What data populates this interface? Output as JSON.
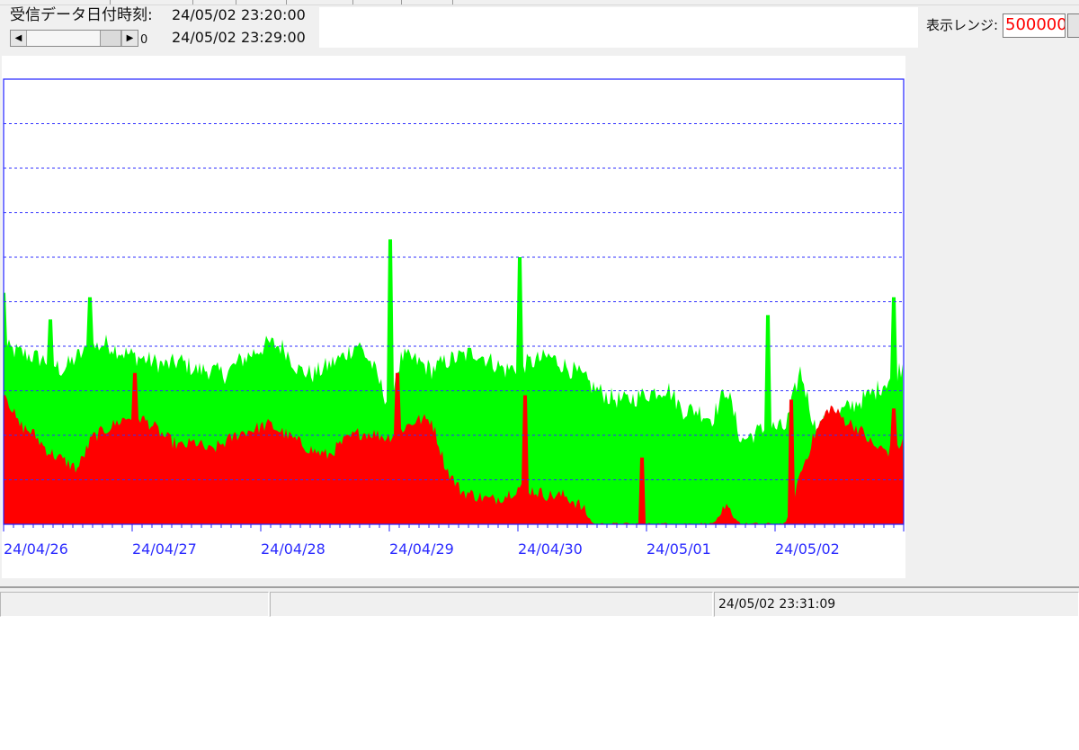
{
  "header": {
    "received_label": "受信データ日付時刻:",
    "received_start": "24/05/02 23:20:00",
    "received_end": "24/05/02 23:29:00",
    "scroll_value": "0"
  },
  "range": {
    "label": "表示レンジ:",
    "value": "500000"
  },
  "status": {
    "time": "24/05/02 23:31:09"
  },
  "chart_data": {
    "type": "area",
    "x_tick_labels": [
      "24/04/26",
      "24/04/27",
      "24/04/28",
      "24/04/29",
      "24/04/30",
      "24/05/01",
      "24/05/02"
    ],
    "ylim": [
      0,
      1
    ],
    "y_gridlines": 10,
    "grid": true,
    "series": [
      {
        "color": "#00ff00",
        "values": [
          0.39,
          0.38,
          0.37,
          0.36,
          0.34,
          0.37,
          0.39,
          0.4,
          0.38,
          0.37,
          0.36,
          0.35,
          0.36,
          0.34,
          0.34,
          0.33,
          0.36,
          0.38,
          0.4,
          0.39,
          0.34,
          0.33,
          0.35,
          0.37,
          0.4,
          0.35,
          0.27,
          0.37,
          0.36,
          0.34,
          0.36,
          0.37,
          0.38,
          0.36,
          0.34,
          0.35,
          0.36,
          0.37,
          0.35,
          0.33,
          0.3,
          0.28,
          0.27,
          0.28,
          0.29,
          0.3,
          0.25,
          0.25,
          0.23,
          0.3,
          0.18,
          0.2,
          0.21,
          0.21,
          0.34,
          0.21,
          0.23,
          0.25,
          0.27,
          0.29,
          0.32,
          0.35
        ],
        "peaks": [
          [
            0.0,
            0.52
          ],
          [
            0.052,
            0.46
          ],
          [
            0.096,
            0.51
          ],
          [
            0.43,
            0.64
          ],
          [
            0.573,
            0.6
          ],
          [
            0.85,
            0.47
          ],
          [
            0.99,
            0.51
          ]
        ]
      },
      {
        "color": "#ff0000",
        "values": [
          0.3,
          0.22,
          0.2,
          0.16,
          0.14,
          0.12,
          0.19,
          0.21,
          0.23,
          0.24,
          0.22,
          0.19,
          0.17,
          0.18,
          0.16,
          0.18,
          0.2,
          0.21,
          0.22,
          0.2,
          0.18,
          0.16,
          0.15,
          0.18,
          0.2,
          0.2,
          0.19,
          0.21,
          0.23,
          0.23,
          0.12,
          0.07,
          0.06,
          0.05,
          0.06,
          0.08,
          0.07,
          0.06,
          0.06,
          0.04,
          0.0,
          0.0,
          0.0,
          0.0,
          0.0,
          0.0,
          0.0,
          0.0,
          0.0,
          0.03,
          0.0,
          0.0,
          0.0,
          0.0,
          0.11,
          0.2,
          0.26,
          0.23,
          0.21,
          0.17,
          0.16,
          0.18
        ],
        "peaks": [
          [
            0.145,
            0.34
          ],
          [
            0.437,
            0.34
          ],
          [
            0.579,
            0.29
          ],
          [
            0.71,
            0.15
          ],
          [
            0.875,
            0.28
          ],
          [
            0.99,
            0.26
          ]
        ]
      }
    ]
  }
}
